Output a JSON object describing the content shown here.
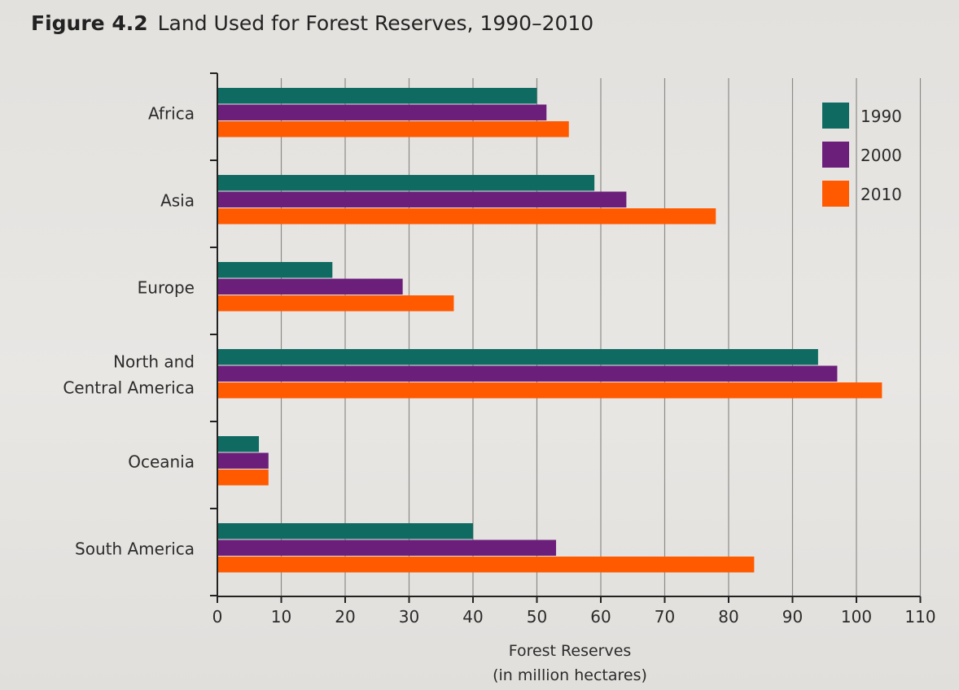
{
  "figure": {
    "label": "Figure 4.2",
    "title": "Land Used for Forest Reserves, 1990–2010"
  },
  "chart_data": {
    "type": "bar",
    "orientation": "horizontal",
    "title": "Land Used for Forest Reserves, 1990–2010",
    "categories": [
      "Africa",
      "Asia",
      "Europe",
      "North and Central America",
      "Oceania",
      "South America"
    ],
    "category_lines": [
      [
        "Africa"
      ],
      [
        "Asia"
      ],
      [
        "Europe"
      ],
      [
        "North and",
        "Central America"
      ],
      [
        "Oceania"
      ],
      [
        "South America"
      ]
    ],
    "series": [
      {
        "name": "1990",
        "color": "#0f6b62",
        "values": [
          50,
          59,
          18,
          94,
          6.5,
          40
        ]
      },
      {
        "name": "2000",
        "color": "#6b1f7a",
        "values": [
          51.5,
          64,
          29,
          97,
          8,
          53
        ]
      },
      {
        "name": "2010",
        "color": "#ff5a00",
        "values": [
          55,
          78,
          37,
          104,
          8,
          84
        ]
      }
    ],
    "xlabel_lines": [
      "Forest Reserves",
      "(in million hectares)"
    ],
    "ylabel": "",
    "xlim": [
      0,
      110
    ],
    "xticks": [
      0,
      10,
      20,
      30,
      40,
      50,
      60,
      70,
      80,
      90,
      100,
      110
    ],
    "grid": "vertical",
    "legend": "top-right"
  }
}
